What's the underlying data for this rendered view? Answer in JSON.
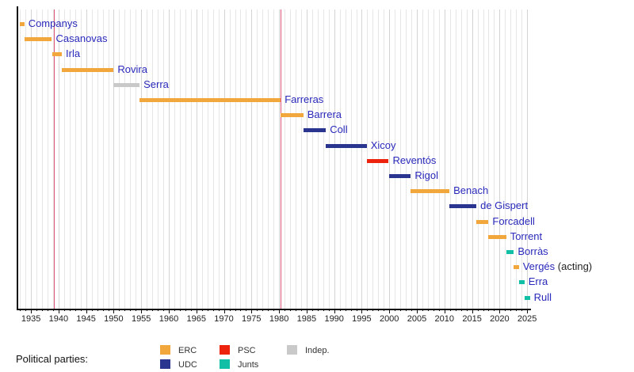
{
  "chart_data": {
    "type": "bar",
    "subtype": "gantt-timeline",
    "title": "",
    "xlabel": "",
    "ylabel": "",
    "grid": "vertical, one line per year",
    "legend_position": "bottom",
    "x_axis": {
      "range": [
        1932.4,
        2025.7
      ],
      "major_ticks": [
        1935,
        1940,
        1945,
        1950,
        1955,
        1960,
        1965,
        1970,
        1975,
        1980,
        1985,
        1990,
        1995,
        2000,
        2005,
        2010,
        2015,
        2020,
        2025
      ],
      "minor_tick_step": 1
    },
    "event_lines": [
      {
        "name": "event-line-1939",
        "year": 1939.2,
        "color": "#dd5577"
      },
      {
        "name": "event-line-1980",
        "year": 1980.3,
        "color": "#dd5577"
      }
    ],
    "parties": {
      "ERC": "#f1a73b",
      "UDC": "#2a3590",
      "PSC": "#ed230d",
      "Junts": "#11bfa7",
      "Indep.": "#c9c9c9"
    },
    "bars": [
      {
        "name": "Companys",
        "party": "ERC",
        "start": 1932.9,
        "end": 1933.8
      },
      {
        "name": "Casanovas",
        "party": "ERC",
        "start": 1933.8,
        "end": 1938.8
      },
      {
        "name": "Irla",
        "party": "ERC",
        "start": 1938.8,
        "end": 1940.6
      },
      {
        "name": "Rovira",
        "party": "ERC",
        "start": 1940.6,
        "end": 1950.0
      },
      {
        "name": "Serra",
        "party": "Indep.",
        "start": 1950.0,
        "end": 1954.7
      },
      {
        "name": "Farreras",
        "party": "ERC",
        "start": 1954.7,
        "end": 1980.3
      },
      {
        "name": "Barrera",
        "party": "ERC",
        "start": 1980.3,
        "end": 1984.4
      },
      {
        "name": "Coll",
        "party": "UDC",
        "start": 1984.4,
        "end": 1988.5
      },
      {
        "name": "Xicoy",
        "party": "UDC",
        "start": 1988.5,
        "end": 1995.9
      },
      {
        "name": "Reventós",
        "party": "PSC",
        "start": 1995.9,
        "end": 1999.9
      },
      {
        "name": "Rigol",
        "party": "UDC",
        "start": 1999.9,
        "end": 2003.9
      },
      {
        "name": "Benach",
        "party": "ERC",
        "start": 2003.9,
        "end": 2010.9
      },
      {
        "name": "de Gispert",
        "party": "UDC",
        "start": 2010.9,
        "end": 2015.8
      },
      {
        "name": "Forcadell",
        "party": "ERC",
        "start": 2015.8,
        "end": 2018.0
      },
      {
        "name": "Torrent",
        "party": "ERC",
        "start": 2018.0,
        "end": 2021.2
      },
      {
        "name": "Borràs",
        "party": "Junts",
        "start": 2021.2,
        "end": 2022.6
      },
      {
        "name": "Vergés",
        "suffix": "(acting)",
        "party": "ERC",
        "start": 2022.6,
        "end": 2023.5
      },
      {
        "name": "Erra",
        "party": "Junts",
        "start": 2023.5,
        "end": 2024.5
      },
      {
        "name": "Rull",
        "party": "Junts",
        "start": 2024.5,
        "end": 2025.5
      }
    ],
    "legend": {
      "title": "Political parties:",
      "items": [
        {
          "label": "ERC",
          "party": "ERC",
          "col": 0,
          "row": 0
        },
        {
          "label": "UDC",
          "party": "UDC",
          "col": 0,
          "row": 1
        },
        {
          "label": "PSC",
          "party": "PSC",
          "col": 1,
          "row": 0
        },
        {
          "label": "Junts",
          "party": "Junts",
          "col": 1,
          "row": 1
        },
        {
          "label": "Indep.",
          "party": "Indep.",
          "col": 2,
          "row": 0
        }
      ]
    }
  }
}
